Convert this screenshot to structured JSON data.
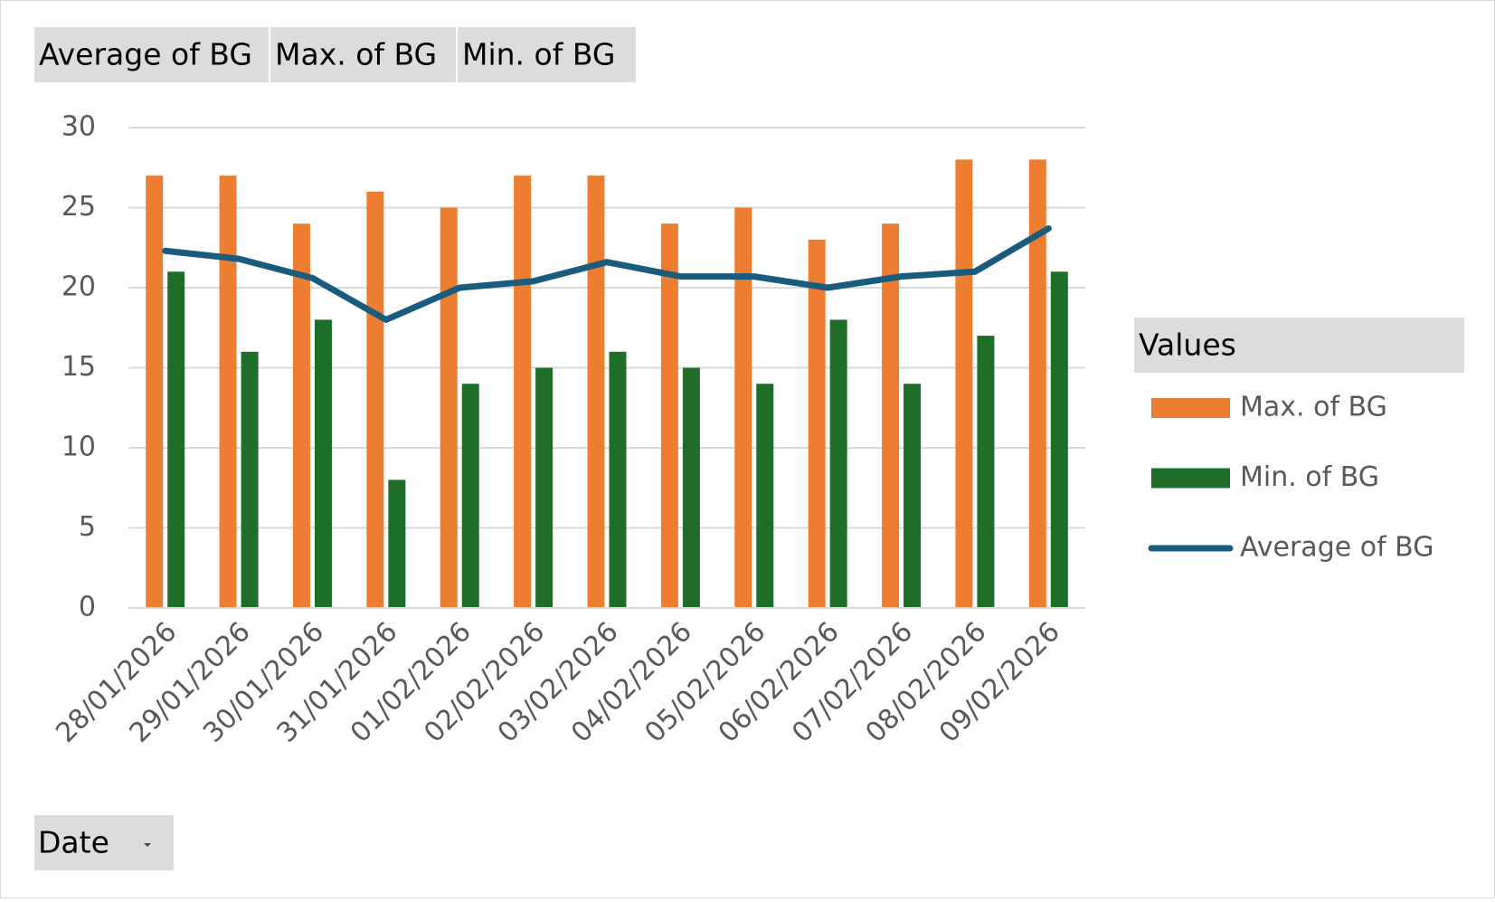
{
  "chart_data": {
    "type": "combo",
    "field_buttons": [
      "Average of BG",
      "Max. of BG",
      "Min. of BG"
    ],
    "axis_field": "Date",
    "legend_title": "Values",
    "categories": [
      "28/01/2026",
      "29/01/2026",
      "30/01/2026",
      "31/01/2026",
      "01/02/2026",
      "02/02/2026",
      "03/02/2026",
      "04/02/2026",
      "05/02/2026",
      "06/02/2026",
      "07/02/2026",
      "08/02/2026",
      "09/02/2026"
    ],
    "series": [
      {
        "name": "Max. of BG",
        "type": "bar",
        "color": "#ed7d31",
        "values": [
          27,
          27,
          24,
          26,
          25,
          27,
          27,
          24,
          25,
          23,
          24,
          28,
          28
        ]
      },
      {
        "name": "Min. of BG",
        "type": "bar",
        "color": "#1e6e2a",
        "values": [
          21,
          16,
          18,
          8,
          14,
          15,
          16,
          15,
          14,
          18,
          14,
          17,
          21
        ]
      },
      {
        "name": "Average of BG",
        "type": "line",
        "color": "#1a5c7e",
        "values": [
          22.3,
          21.8,
          20.6,
          18,
          20,
          20.4,
          21.6,
          20.7,
          20.7,
          20,
          20.7,
          21,
          23.7
        ]
      }
    ],
    "ylim": [
      0,
      30
    ],
    "yticks": [
      0,
      5,
      10,
      15,
      20,
      25,
      30
    ],
    "grid": true,
    "legend": "right"
  }
}
